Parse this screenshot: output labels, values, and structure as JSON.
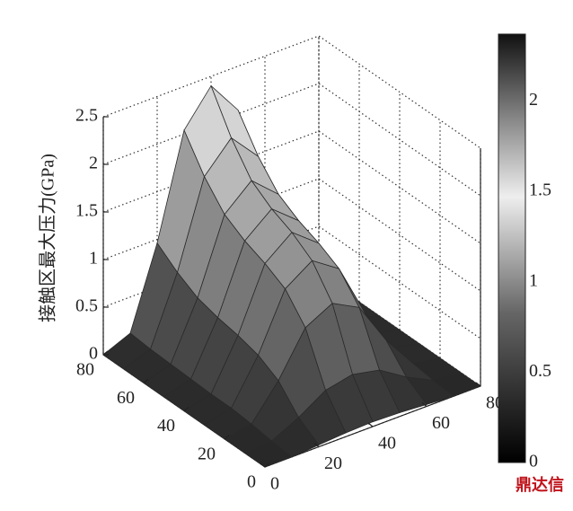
{
  "chart_data": {
    "type": "surface",
    "zlabel": "接触区最大压力(GPa)",
    "x": [
      0,
      10,
      20,
      30,
      40,
      50,
      60,
      70,
      80
    ],
    "y": [
      0,
      10,
      20,
      30,
      40,
      50,
      60,
      70,
      80
    ],
    "z": [
      [
        0,
        0,
        0.02,
        0.04,
        0.05,
        0.04,
        0.02,
        0,
        0
      ],
      [
        0,
        0.02,
        0.16,
        0.34,
        0.4,
        0.34,
        0.16,
        0.02,
        0
      ],
      [
        0,
        0.05,
        0.4,
        0.85,
        1,
        0.85,
        0.4,
        0.05,
        0
      ],
      [
        0,
        0.07,
        0.52,
        1.11,
        1.3,
        1.11,
        0.52,
        0.07,
        0
      ],
      [
        0,
        0.07,
        0.58,
        1.23,
        1.45,
        1.23,
        0.58,
        0.07,
        0
      ],
      [
        0,
        0.08,
        0.62,
        1.32,
        1.55,
        1.32,
        0.62,
        0.08,
        0
      ],
      [
        0,
        0.09,
        0.68,
        1.45,
        1.7,
        1.45,
        0.68,
        0.09,
        0
      ],
      [
        0,
        0.1,
        0.8,
        1.7,
        2,
        1.7,
        0.8,
        0.1,
        0
      ],
      [
        0,
        0.12,
        0.96,
        2.04,
        2.4,
        2.04,
        0.96,
        0.12,
        0
      ]
    ],
    "xlim": [
      0,
      80
    ],
    "ylim": [
      0,
      80
    ],
    "zlim": [
      0,
      2.5
    ],
    "xticks": [
      0,
      20,
      40,
      60,
      80
    ],
    "yticks": [
      0,
      20,
      40,
      60,
      80
    ],
    "zticks": [
      0,
      0.5,
      1,
      1.5,
      2,
      2.5
    ],
    "grid": true,
    "colorbar": {
      "lim": [
        0,
        2.37
      ],
      "ticks": [
        0,
        0.5,
        1,
        1.5,
        2
      ]
    }
  },
  "watermark": "鼎达信"
}
